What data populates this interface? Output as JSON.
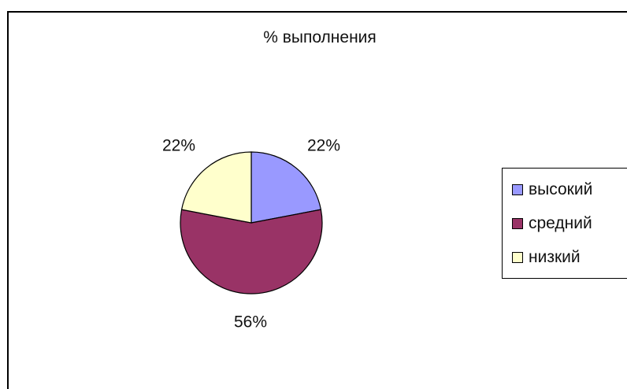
{
  "chart_data": {
    "type": "pie",
    "title": "% выполнения",
    "categories": [
      "высокий",
      "средний",
      "низкий"
    ],
    "values": [
      22,
      56,
      22
    ],
    "data_labels": [
      "22%",
      "56%",
      "22%"
    ],
    "colors": [
      "#9999ff",
      "#993366",
      "#ffffcc"
    ],
    "legend": {
      "position": "right",
      "entries": [
        "высокий",
        "средний",
        "низкий"
      ]
    }
  }
}
